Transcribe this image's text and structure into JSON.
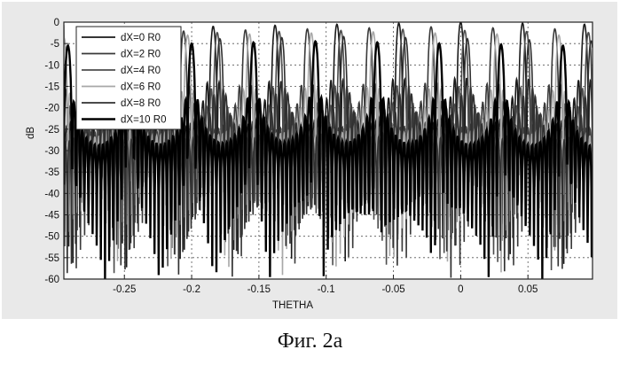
{
  "caption": "Фиг. 2а",
  "chart_data": {
    "type": "line",
    "xlabel": "THETHA",
    "ylabel": "dB",
    "xlim": [
      -0.295,
      0.098
    ],
    "ylim": [
      -60,
      0
    ],
    "xticks": [
      -0.25,
      -0.2,
      -0.15,
      -0.1,
      -0.05,
      0,
      0.05
    ],
    "xtick_labels": [
      "-0.25",
      "-0.2",
      "-0.15",
      "-0.1",
      "-0.05",
      "0",
      "0.05"
    ],
    "yticks": [
      0,
      -5,
      -10,
      -15,
      -20,
      -25,
      -30,
      -35,
      -40,
      -45,
      -50,
      -55,
      -60
    ],
    "ytick_labels": [
      "0",
      "-5",
      "-10",
      "-15",
      "-20",
      "-25",
      "-30",
      "-35",
      "-40",
      "-45",
      "-50",
      "-55",
      "-60"
    ],
    "grid": true,
    "legend_position": "top-left",
    "series": [
      {
        "name": "dX=0 R0",
        "peak_x": 0.0,
        "peak_db": 0.0,
        "color": "#1a1a1a"
      },
      {
        "name": "dX=2 R0",
        "peak_x": -0.022,
        "peak_db": -0.5,
        "color": "#3a3a3a"
      },
      {
        "name": "dX=4 R0",
        "peak_x": -0.043,
        "peak_db": -0.5,
        "color": "#4d4d4d"
      },
      {
        "name": "dX=6 R0",
        "peak_x": -0.065,
        "peak_db": -0.5,
        "color": "#a8a8a8"
      },
      {
        "name": "dX=8 R0",
        "peak_x": -0.087,
        "peak_db": -1.0,
        "color": "#303030"
      },
      {
        "name": "dX=10 R0",
        "peak_x": -0.108,
        "peak_db": -1.5,
        "color": "#000000"
      }
    ]
  }
}
